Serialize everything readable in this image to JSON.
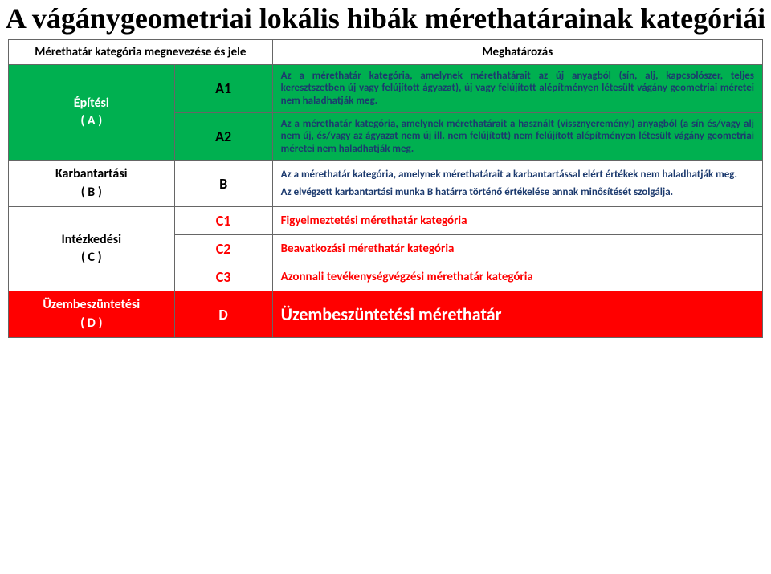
{
  "colors": {
    "green_bg": "#00b050",
    "red_bg": "#ff0000",
    "white": "#ffffff",
    "black": "#000000",
    "darkblue": "#1c3a6e"
  },
  "layout": {
    "col_left_pct": 22,
    "col_code_pct": 13,
    "col_desc_pct": 65
  },
  "title": "A vágánygeometriai lokális hibák mérethatárainak kategóriái",
  "header": {
    "left": "Mérethatár kategória megnevezése és jele",
    "right": "Meghatározás"
  },
  "rows": [
    {
      "span": 2,
      "label": "Építési\n( A )",
      "label_bg": "#00b050",
      "label_color": "#ffffff",
      "cells": [
        {
          "code": "A1",
          "code_bg": "#00b050",
          "code_color": "#000000",
          "desc": "Az a mérethatár kategória, amelynek mérethatárait az új anyagból (sín, alj, kapcsolószer, teljes keresztszetben új vagy felújított ágyazat), új vagy felújított alépítményen létesült vágány geometriai méretei nem haladhatják meg.",
          "desc_bg": "#00b050",
          "desc_color": "#1c3a6e",
          "desc_class": "desc-cell"
        },
        {
          "code": "A2",
          "code_bg": "#00b050",
          "code_color": "#000000",
          "desc": "Az a mérethatár kategória, amelynek mérethatárait a használt (vissznyereményi) anyagból (a sín és/vagy alj nem új, és/vagy az ágyazat nem új ill. nem felújított) nem felújított alépítményen létesült vágány geometriai méretei nem haladhatják meg.",
          "desc_bg": "#00b050",
          "desc_color": "#1c3a6e",
          "desc_class": "desc-cell"
        }
      ]
    },
    {
      "span": 1,
      "label": "Karbantartási\n( B )",
      "label_bg": "#ffffff",
      "label_color": "#000000",
      "cells": [
        {
          "code": "B",
          "code_bg": "#ffffff",
          "code_color": "#000000",
          "desc": "Az a mérethatár kategória, amelynek mérethatárait a karbantartással elért értékek nem haladhatják meg.\n\nAz elvégzett karbantartási munka B határra történő értékelése annak minősítését szolgálja.",
          "desc_bg": "#ffffff",
          "desc_color": "#1c3a6e",
          "desc_class": "desc-cell"
        }
      ]
    },
    {
      "span": 3,
      "label": "Intézkedési\n( C )",
      "label_bg": "#ffffff",
      "label_color": "#000000",
      "cells": [
        {
          "code": "C1",
          "code_bg": "#ffffff",
          "code_color": "#ff0000",
          "desc": "Figyelmeztetési mérethatár kategória",
          "desc_bg": "#ffffff",
          "desc_color": "#ff0000",
          "desc_class": "desc-large"
        },
        {
          "code": "C2",
          "code_bg": "#ffffff",
          "code_color": "#ff0000",
          "desc": "Beavatkozási mérethatár kategória",
          "desc_bg": "#ffffff",
          "desc_color": "#ff0000",
          "desc_class": "desc-large"
        },
        {
          "code": "C3",
          "code_bg": "#ffffff",
          "code_color": "#ff0000",
          "desc": "Azonnali tevékenységvégzési mérethatár kategória",
          "desc_bg": "#ffffff",
          "desc_color": "#ff0000",
          "desc_class": "desc-large"
        }
      ]
    },
    {
      "span": 1,
      "label": "Üzembeszüntetési\n( D )",
      "label_bg": "#ff0000",
      "label_color": "#ffffff",
      "cells": [
        {
          "code": "D",
          "code_bg": "#ff0000",
          "code_color": "#ffffff",
          "desc": "Üzembeszüntetési mérethatár",
          "desc_bg": "#ff0000",
          "desc_color": "#ffffff",
          "desc_class": "desc-huge"
        }
      ]
    }
  ]
}
